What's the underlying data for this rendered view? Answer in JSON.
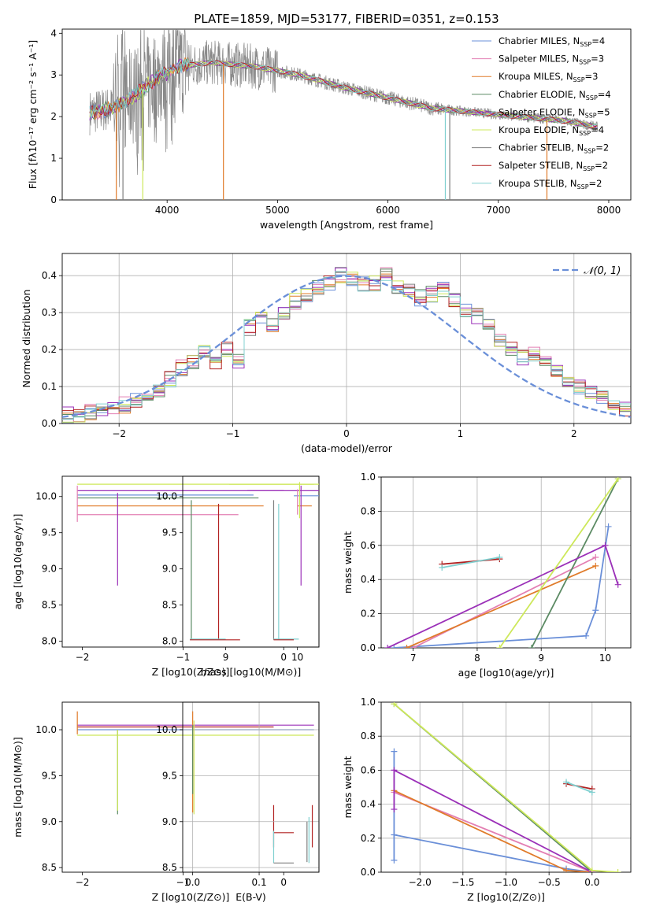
{
  "figure": {
    "title": "PLATE=1859, MJD=53177, FIBERID=0351, z=0.153"
  },
  "colors": {
    "chabrier_miles": "#6a8fd8",
    "salpeter_miles": "#e37fb3",
    "kroupa_miles": "#e07b2a",
    "chabrier_elodie": "#5b8a63",
    "salpeter_elodie": "#9b30b8",
    "kroupa_elodie": "#cde85a",
    "chabrier_stelib": "#7f7f7f",
    "salpeter_stelib": "#b22222",
    "kroupa_stelib": "#80d0d0",
    "normal_curve": "#6a8fd8",
    "grid": "#b0b0b0"
  },
  "chart_data": [
    {
      "id": "spectrum",
      "type": "line",
      "title": "PLATE=1859, MJD=53177, FIBERID=0351, z=0.153",
      "xlabel": "wavelength [Angstrom, rest frame]",
      "ylabel": "Flux [fλ10⁻¹⁷ erg cm⁻² s⁻¹ A⁻¹]",
      "xlim": [
        3050,
        8200
      ],
      "ylim": [
        0,
        4.1
      ],
      "xticks": [
        4000,
        5000,
        6000,
        7000,
        8000
      ],
      "yticks": [
        0,
        1,
        2,
        3,
        4
      ],
      "grid": false,
      "legend_position": "upper-right",
      "continuum_x": [
        3300,
        3500,
        3700,
        3900,
        4100,
        4400,
        4800,
        5200,
        5600,
        6000,
        6400,
        6800,
        7200,
        7600,
        7900
      ],
      "continuum_y": [
        2.1,
        2.2,
        2.5,
        2.9,
        3.2,
        3.3,
        3.2,
        3.0,
        2.7,
        2.45,
        2.2,
        2.1,
        2.0,
        1.9,
        1.75
      ],
      "legend": [
        {
          "label": "Chabrier MILES, N",
          "sub": "SSP",
          "tail": "=4"
        },
        {
          "label": "Salpeter MILES, N",
          "sub": "SSP",
          "tail": "=3"
        },
        {
          "label": "Kroupa MILES, N",
          "sub": "SSP",
          "tail": "=3"
        },
        {
          "label": "Chabrier ELODIE, N",
          "sub": "SSP",
          "tail": "=4"
        },
        {
          "label": "Salpeter ELODIE, N",
          "sub": "SSP",
          "tail": "=5"
        },
        {
          "label": "Kroupa ELODIE, N",
          "sub": "SSP",
          "tail": "=4"
        },
        {
          "label": "Chabrier STELIB, N",
          "sub": "SSP",
          "tail": "=2"
        },
        {
          "label": "Salpeter STELIB, N",
          "sub": "SSP",
          "tail": "=2"
        },
        {
          "label": "Kroupa STELIB, N",
          "sub": "SSP",
          "tail": "=2"
        }
      ]
    },
    {
      "id": "residual_hist",
      "type": "line",
      "xlabel": "(data-model)/error",
      "ylabel": "Normed distribution",
      "xlim": [
        -2.5,
        2.5
      ],
      "ylim": [
        0,
        0.46
      ],
      "xticks": [
        -2,
        -1,
        0,
        1,
        2
      ],
      "yticks": [
        0.0,
        0.1,
        0.2,
        0.3,
        0.4
      ],
      "grid": true,
      "legend_position": "upper-right",
      "legend": "𝒩(0, 1)",
      "bin_edges_start": -2.5,
      "bin_width": 0.1,
      "hist_base": [
        0.025,
        0.025,
        0.03,
        0.04,
        0.045,
        0.05,
        0.06,
        0.07,
        0.09,
        0.12,
        0.15,
        0.17,
        0.19,
        0.17,
        0.2,
        0.17,
        0.26,
        0.28,
        0.27,
        0.3,
        0.33,
        0.35,
        0.37,
        0.38,
        0.4,
        0.39,
        0.38,
        0.38,
        0.4,
        0.37,
        0.36,
        0.34,
        0.35,
        0.36,
        0.33,
        0.31,
        0.29,
        0.27,
        0.22,
        0.2,
        0.18,
        0.19,
        0.17,
        0.14,
        0.11,
        0.1,
        0.08,
        0.07,
        0.05,
        0.04
      ]
    },
    {
      "id": "age_vs_Z",
      "type": "scatter",
      "xlabel": "Z [log10(Z/Z⊙)]",
      "ylabel": "age  [log10(age/yr)]",
      "xlim": [
        -2.2,
        0.35
      ],
      "ylim": [
        7.92,
        10.28
      ],
      "xticks": [
        -2,
        -1,
        0
      ],
      "yticks": [
        8.0,
        8.5,
        9.0,
        9.5,
        10.0
      ],
      "grid": false
    },
    {
      "id": "age_vs_mass",
      "type": "scatter",
      "xlabel": "mass [log10(M/M⊙)]",
      "xlim": [
        8.4,
        10.3
      ],
      "ylim": [
        7.92,
        10.28
      ],
      "xticks": [
        9,
        10
      ],
      "yticks": [
        8.0,
        8.5,
        9.0,
        9.5,
        10.0
      ],
      "grid": false
    },
    {
      "id": "massweight_vs_age",
      "type": "line",
      "xlabel": "age  [log10(age/yr)]",
      "ylabel": "mass weight",
      "xlim": [
        6.5,
        10.4
      ],
      "ylim": [
        0,
        1.0
      ],
      "xticks": [
        7,
        8,
        9,
        10
      ],
      "yticks": [
        0.0,
        0.2,
        0.4,
        0.6,
        0.8,
        1.0
      ],
      "grid": true,
      "series": [
        {
          "color": "chabrier_miles",
          "x": [
            6.7,
            9.7,
            9.85,
            10.05
          ],
          "y": [
            0.0,
            0.07,
            0.22,
            0.71
          ]
        },
        {
          "color": "salpeter_miles",
          "x": [
            7.0,
            9.85
          ],
          "y": [
            0.0,
            0.53
          ]
        },
        {
          "color": "kroupa_miles",
          "x": [
            6.9,
            9.85
          ],
          "y": [
            0.0,
            0.48
          ]
        },
        {
          "color": "chabrier_elodie",
          "x": [
            8.85,
            10.2
          ],
          "y": [
            0.0,
            0.99
          ]
        },
        {
          "color": "salpeter_elodie",
          "x": [
            6.6,
            10.0,
            10.2
          ],
          "y": [
            0.0,
            0.6,
            0.37
          ]
        },
        {
          "color": "kroupa_elodie",
          "x": [
            8.35,
            10.2
          ],
          "y": [
            0.0,
            0.99
          ]
        },
        {
          "color": "salpeter_stelib",
          "x": [
            7.45,
            8.35
          ],
          "y": [
            0.49,
            0.52
          ]
        },
        {
          "color": "kroupa_stelib",
          "x": [
            7.45,
            8.35
          ],
          "y": [
            0.47,
            0.53
          ]
        }
      ]
    },
    {
      "id": "mass_vs_Z",
      "type": "scatter",
      "xlabel": "Z [log10(Z/Z⊙)]",
      "ylabel": "mass [log10(M/M⊙)]",
      "xlim": [
        -2.2,
        0.35
      ],
      "ylim": [
        8.45,
        10.3
      ],
      "xticks": [
        -2,
        -1,
        0
      ],
      "yticks": [
        8.5,
        9.0,
        9.5,
        10.0
      ],
      "grid": false
    },
    {
      "id": "mass_vs_ebv",
      "type": "scatter",
      "xlabel": "E(B-V)",
      "xlim": [
        -0.015,
        0.19
      ],
      "ylim": [
        8.45,
        10.3
      ],
      "xticks": [
        0.0,
        0.1
      ],
      "yticks": [
        8.5,
        9.0,
        9.5,
        10.0
      ],
      "grid": true
    },
    {
      "id": "massweight_vs_Z",
      "type": "line",
      "xlabel": "Z [log10(Z/Z⊙)]",
      "ylabel": "mass weight",
      "xlim": [
        -2.45,
        0.45
      ],
      "ylim": [
        0,
        1.0
      ],
      "xticks": [
        -2.0,
        -1.5,
        -1.0,
        -0.5,
        0.0
      ],
      "yticks": [
        0.0,
        0.2,
        0.4,
        0.6,
        0.8,
        1.0
      ],
      "grid": true,
      "series": [
        {
          "color": "chabrier_miles",
          "x": [
            -2.3,
            -2.3,
            -2.3,
            -0.3,
            0.0
          ],
          "y": [
            0.07,
            0.71,
            0.22,
            0.02,
            0.0
          ]
        },
        {
          "color": "salpeter_miles",
          "x": [
            -2.3,
            0.0
          ],
          "y": [
            0.47,
            0.0
          ]
        },
        {
          "color": "kroupa_miles",
          "x": [
            -2.3,
            -0.3,
            0.0
          ],
          "y": [
            0.48,
            0.01,
            0.0
          ]
        },
        {
          "color": "chabrier_elodie",
          "x": [
            -2.3,
            0.0
          ],
          "y": [
            0.99,
            0.0
          ]
        },
        {
          "color": "salpeter_elodie",
          "x": [
            -2.3,
            -2.3,
            0.0
          ],
          "y": [
            0.37,
            0.6,
            0.0
          ]
        },
        {
          "color": "kroupa_elodie",
          "x": [
            -2.3,
            0.0,
            0.3
          ],
          "y": [
            0.99,
            0.01,
            0.0
          ]
        },
        {
          "color": "salpeter_stelib",
          "x": [
            -0.3,
            0.0
          ],
          "y": [
            0.52,
            0.49
          ]
        },
        {
          "color": "kroupa_stelib",
          "x": [
            -0.3,
            0.0
          ],
          "y": [
            0.53,
            0.47
          ]
        }
      ]
    }
  ]
}
